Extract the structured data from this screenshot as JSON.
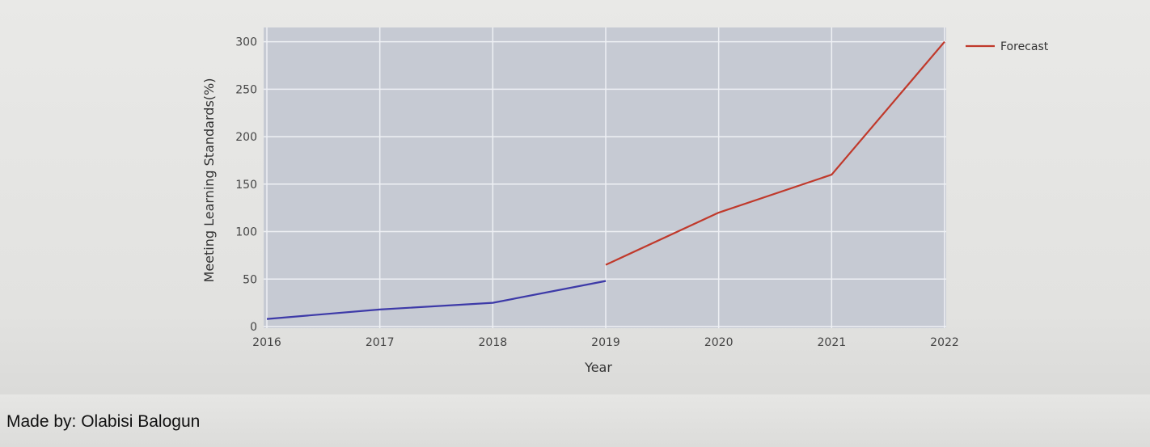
{
  "chart_data": {
    "type": "line",
    "xlabel": "Year",
    "ylabel": "Meeting Learning Standards(%)",
    "xlim": [
      2016,
      2022
    ],
    "ylim": [
      0,
      315
    ],
    "x_ticks": [
      "2016",
      "2017",
      "2018",
      "2019",
      "2020",
      "2021",
      "2022"
    ],
    "y_ticks": [
      "0",
      "50",
      "100",
      "150",
      "200",
      "250",
      "300"
    ],
    "grid": true,
    "legend_position": "top-right",
    "series": [
      {
        "color": "#3d3aa8",
        "points": [
          {
            "x": 2016,
            "y": 8
          },
          {
            "x": 2017,
            "y": 18
          },
          {
            "x": 2018,
            "y": 25
          },
          {
            "x": 2019,
            "y": 48
          }
        ]
      },
      {
        "name": "Forecast",
        "color": "#c0392b",
        "points": [
          {
            "x": 2019,
            "y": 65
          },
          {
            "x": 2020,
            "y": 120
          },
          {
            "x": 2021,
            "y": 160
          },
          {
            "x": 2022,
            "y": 300
          }
        ]
      }
    ]
  },
  "footer": {
    "credit": "Made by: Olabisi Balogun"
  }
}
